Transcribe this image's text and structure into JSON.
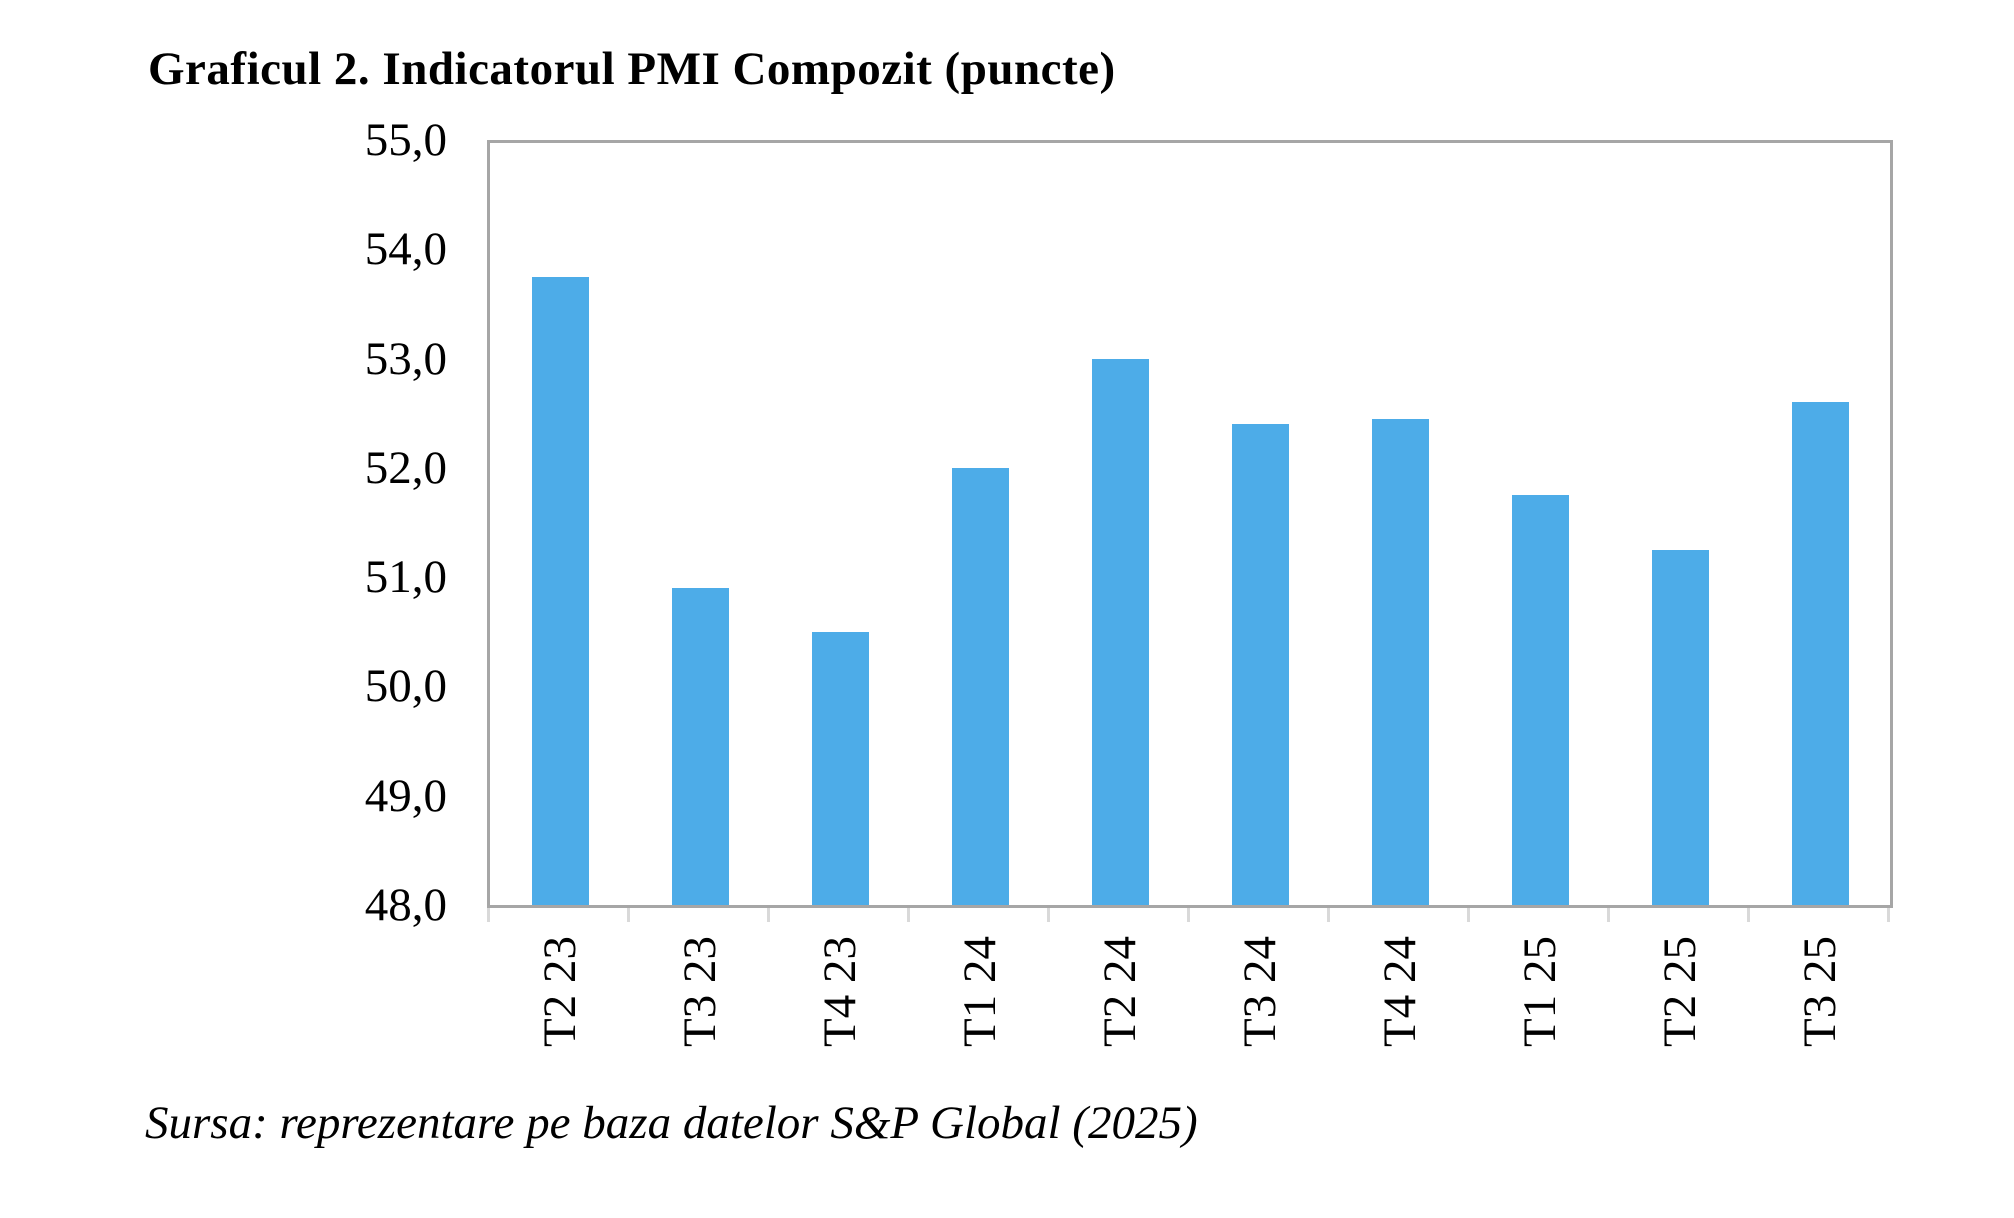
{
  "title": "Graficul 2. Indicatorul PMI Compozit (puncte)",
  "source": "Sursa: reprezentare pe baza datelor S&P Global (2025)",
  "chart_data": {
    "type": "bar",
    "categories": [
      "T2 23",
      "T3 23",
      "T4 23",
      "T1 24",
      "T2 24",
      "T3 24",
      "T4 24",
      "T1 25",
      "T2 25",
      "T3 25"
    ],
    "values": [
      53.75,
      50.9,
      50.5,
      52.0,
      53.0,
      52.4,
      52.45,
      51.75,
      51.25,
      52.6
    ],
    "title": "Graficul 2. Indicatorul PMI Compozit (puncte)",
    "xlabel": "",
    "ylabel": "",
    "ylim": [
      48.0,
      55.0
    ],
    "ytick_step": 1.0,
    "ytick_labels": [
      "55,0",
      "54,0",
      "53,0",
      "52,0",
      "51,0",
      "50,0",
      "49,0",
      "48,0"
    ],
    "decimal_separator": ",",
    "grid": false,
    "legend": false,
    "bar_color": "#4DACE8",
    "axis_color": "#A6A6A6",
    "tick_color": "#D9D9D9",
    "text_color": "#000000"
  }
}
